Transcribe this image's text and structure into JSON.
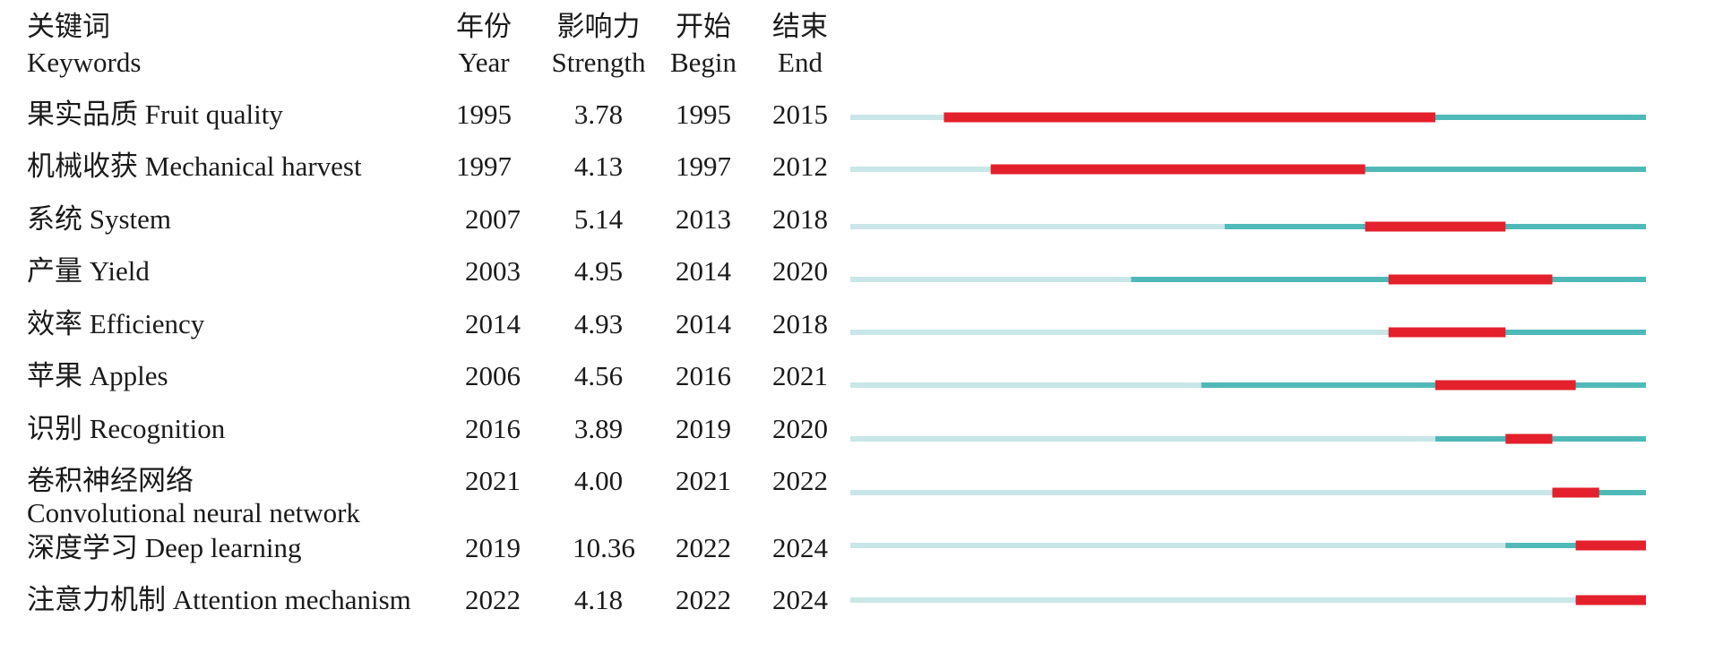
{
  "headers": {
    "keyword": {
      "zh": "关键词",
      "en": "Keywords"
    },
    "year": {
      "zh": "年份",
      "en": "Year"
    },
    "strength": {
      "zh": "影响力",
      "en": "Strength"
    },
    "begin": {
      "zh": "开始",
      "en": "Begin"
    },
    "end": {
      "zh": "结束",
      "en": "End"
    }
  },
  "chart_data": {
    "type": "table",
    "timeline": [
      1991,
      2024
    ],
    "colors": {
      "burst": "#e3202b",
      "active": "#4fb9b8",
      "inactive": "#c9e6e8"
    },
    "rows": [
      {
        "keyword_zh": "果实品质",
        "keyword_en": "Fruit quality",
        "year": "1995",
        "strength": "3.78",
        "begin": "1995",
        "end": "2015"
      },
      {
        "keyword_zh": "机械收获",
        "keyword_en": "Mechanical harvest",
        "year": "1997",
        "strength": "4.13",
        "begin": "1997",
        "end": "2012"
      },
      {
        "keyword_zh": "系统",
        "keyword_en": "System",
        "year": "2007",
        "strength": "5.14",
        "begin": "2013",
        "end": "2018"
      },
      {
        "keyword_zh": "产量",
        "keyword_en": "Yield",
        "year": "2003",
        "strength": "4.95",
        "begin": "2014",
        "end": "2020"
      },
      {
        "keyword_zh": "效率",
        "keyword_en": "Efficiency",
        "year": "2014",
        "strength": "4.93",
        "begin": "2014",
        "end": "2018"
      },
      {
        "keyword_zh": "苹果",
        "keyword_en": "Apples",
        "year": "2006",
        "strength": "4.56",
        "begin": "2016",
        "end": "2021"
      },
      {
        "keyword_zh": "识别",
        "keyword_en": "Recognition",
        "year": "2016",
        "strength": "3.89",
        "begin": "2019",
        "end": "2020"
      },
      {
        "keyword_zh": "卷积神经网络",
        "keyword_en": "Convolutional neural network",
        "year": "2021",
        "strength": "4.00",
        "begin": "2021",
        "end": "2022",
        "wrap": true
      },
      {
        "keyword_zh": "深度学习",
        "keyword_en": "Deep learning",
        "year": "2019",
        "strength": "10.36",
        "begin": "2022",
        "end": "2024"
      },
      {
        "keyword_zh": "注意力机制",
        "keyword_en": "Attention mechanism",
        "year": "2022",
        "strength": "4.18",
        "begin": "2022",
        "end": "2024"
      }
    ]
  }
}
